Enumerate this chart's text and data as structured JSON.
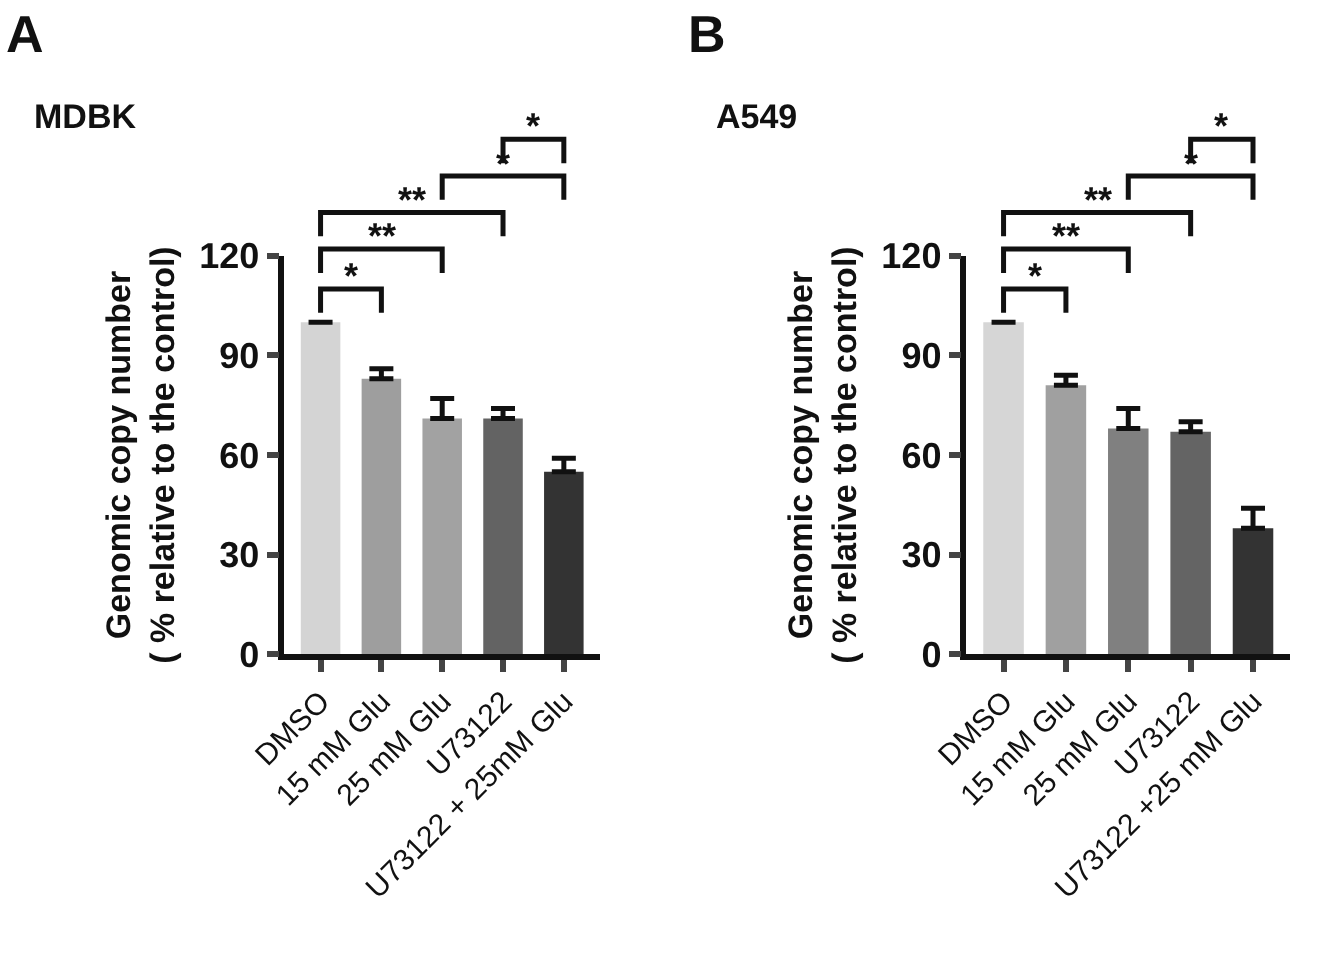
{
  "chart_data": [
    {
      "type": "bar",
      "title": "MDBK",
      "ylabel": "Genomic copy number\n( % relative to the control)",
      "categories": [
        "DMSO",
        "15 mM Glu",
        "25 mM Glu",
        "U73122",
        "U73122 + 25mM Glu"
      ],
      "values": [
        100,
        83,
        71,
        71,
        55
      ],
      "errors": [
        null,
        3,
        6,
        3,
        4
      ],
      "colors": [
        "#d4d4d4",
        "#9e9e9e",
        "#a2a2a2",
        "#636363",
        "#333333"
      ],
      "ylim": [
        0,
        120
      ],
      "yticks": [
        0,
        30,
        60,
        90,
        120
      ],
      "annotations": [
        "A",
        "*",
        "**",
        "**",
        "*",
        "*"
      ]
    },
    {
      "type": "bar",
      "title": "A549",
      "ylabel": "Genomic copy number\n( % relative to the control)",
      "categories": [
        "DMSO",
        "15 mM Glu",
        "25 mM Glu",
        "U73122",
        "U73122 +25 mM Glu"
      ],
      "values": [
        100,
        81,
        68,
        67,
        38
      ],
      "errors": [
        null,
        3,
        6,
        3,
        6
      ],
      "colors": [
        "#d6d6d6",
        "#a0a0a0",
        "#808080",
        "#646464",
        "#333333"
      ],
      "ylim": [
        0,
        120
      ],
      "yticks": [
        0,
        30,
        60,
        90,
        120
      ],
      "annotations": [
        "B",
        "*",
        "**",
        "**",
        "*",
        "*"
      ]
    }
  ]
}
